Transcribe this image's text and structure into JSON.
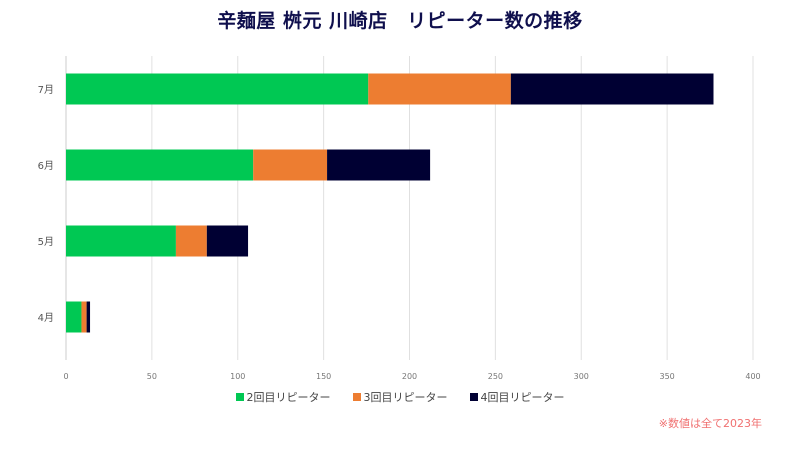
{
  "chart_data": {
    "type": "bar",
    "orientation": "horizontal",
    "stacked": true,
    "title": "辛麺屋 桝元 川崎店　リピーター数の推移",
    "categories": [
      "4月",
      "5月",
      "6月",
      "7月"
    ],
    "series": [
      {
        "name": "2回目リピーター",
        "color": "#00c853",
        "values": [
          9,
          64,
          109,
          176
        ]
      },
      {
        "name": "3回目リピーター",
        "color": "#ed7d31",
        "values": [
          3,
          18,
          43,
          83
        ]
      },
      {
        "name": "4回目リピーター",
        "color": "#000033",
        "values": [
          2,
          24,
          60,
          118
        ]
      }
    ],
    "xlim": [
      0,
      400
    ],
    "xticks": [
      0,
      50,
      100,
      150,
      200,
      250,
      300,
      350,
      400
    ],
    "xlabel": "",
    "ylabel": "",
    "grid": true,
    "legend_position": "bottom",
    "note": "※数値は全て2023年"
  }
}
